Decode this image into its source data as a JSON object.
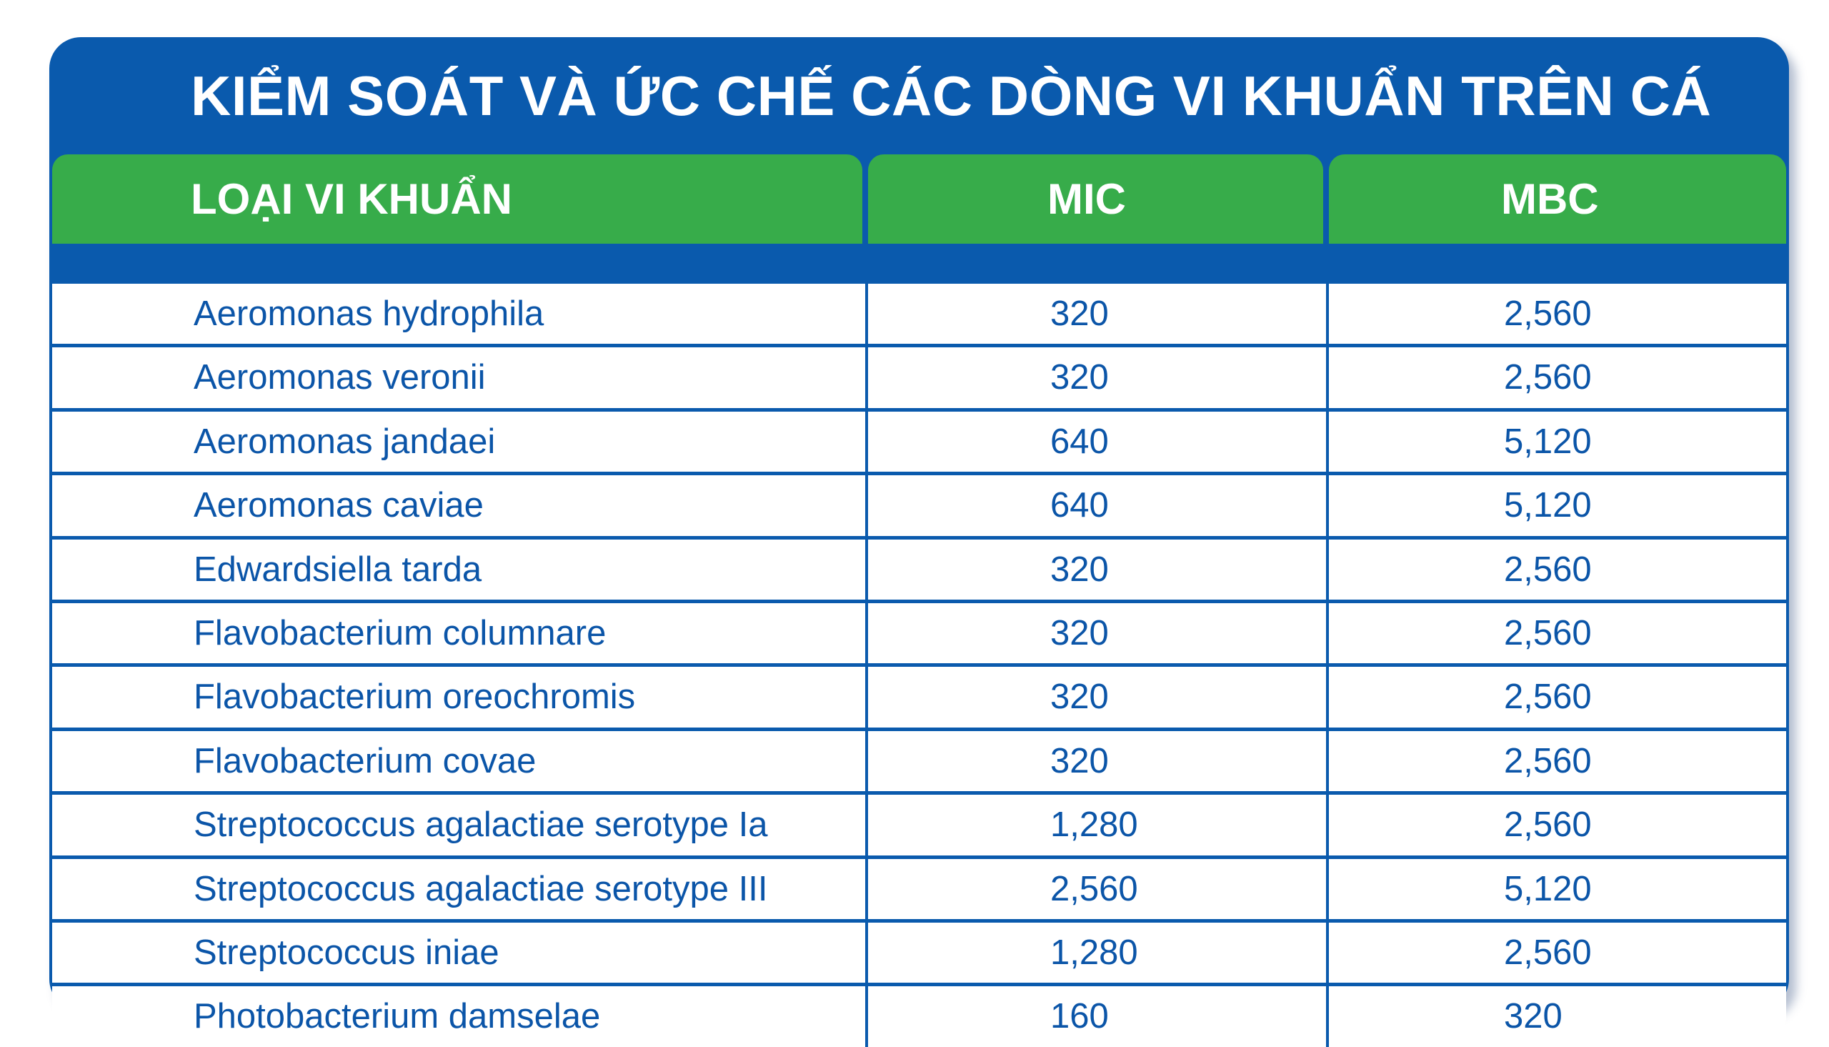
{
  "title": "KIỂM SOÁT VÀ ỨC CHẾ CÁC DÒNG VI KHUẨN TRÊN CÁ",
  "colors": {
    "header_blue": "#0a5aad",
    "header_green": "#37ac4a",
    "text_blue": "#0b55a8"
  },
  "columns": [
    "LOẠI VI KHUẨN",
    "MIC",
    "MBC"
  ],
  "rows": [
    {
      "name": "Aeromonas hydrophila",
      "mic": "320",
      "mbc": "2,560"
    },
    {
      "name": "Aeromonas veronii",
      "mic": "320",
      "mbc": "2,560"
    },
    {
      "name": "Aeromonas jandaei",
      "mic": "640",
      "mbc": "5,120"
    },
    {
      "name": "Aeromonas caviae",
      "mic": "640",
      "mbc": "5,120"
    },
    {
      "name": "Edwardsiella tarda",
      "mic": "320",
      "mbc": "2,560"
    },
    {
      "name": "Flavobacterium columnare",
      "mic": "320",
      "mbc": "2,560"
    },
    {
      "name": "Flavobacterium oreochromis",
      "mic": "320",
      "mbc": "2,560"
    },
    {
      "name": "Flavobacterium covae",
      "mic": "320",
      "mbc": "2,560"
    },
    {
      "name": "Streptococcus agalactiae serotype Ia",
      "mic": "1,280",
      "mbc": "2,560"
    },
    {
      "name": "Streptococcus agalactiae serotype III",
      "mic": "2,560",
      "mbc": "5,120"
    },
    {
      "name": "Streptococcus iniae",
      "mic": "1,280",
      "mbc": "2,560"
    },
    {
      "name": "Photobacterium damselae",
      "mic": "160",
      "mbc": "320"
    }
  ]
}
